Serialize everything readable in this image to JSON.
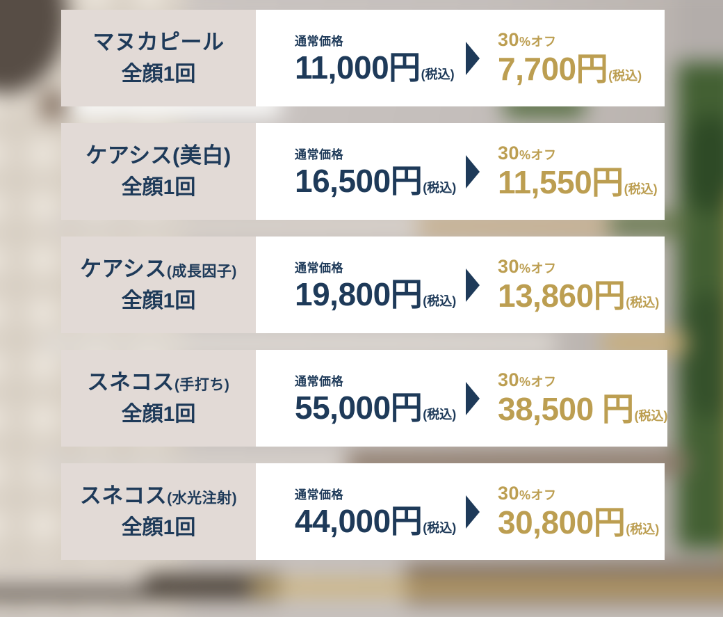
{
  "colors": {
    "navy": "#1e3a59",
    "gold": "#bc9e51",
    "label_background": "#e2dad6",
    "panel_background": "#ffffff"
  },
  "labels": {
    "regular_price": "通常価格",
    "discount_value": "30",
    "discount_suffix": "%オフ",
    "tax_included": "(税込)"
  },
  "rows": [
    {
      "title": "マヌカピール",
      "title_note": "",
      "unit": "全顔1回",
      "regular_price": "11,000円",
      "sale_price": "7,700円"
    },
    {
      "title": "ケアシス(美白)",
      "title_note": "",
      "unit": "全顔1回",
      "regular_price": "16,500円",
      "sale_price": "11,550円"
    },
    {
      "title": "ケアシス",
      "title_note": "(成長因子)",
      "unit": "全顔1回",
      "regular_price": "19,800円",
      "sale_price": "13,860円"
    },
    {
      "title": "スネコス",
      "title_note": "(手打ち)",
      "unit": "全顔1回",
      "regular_price": "55,000円",
      "sale_price": "38,500 円"
    },
    {
      "title": "スネコス",
      "title_note": "(水光注射)",
      "unit": "全顔1回",
      "regular_price": "44,000円",
      "sale_price": "30,800円"
    }
  ]
}
